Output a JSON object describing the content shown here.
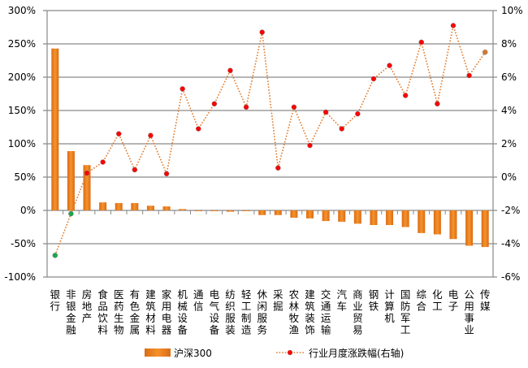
{
  "chart_data": {
    "type": "bar+line",
    "title": "",
    "categories": [
      "银行",
      "非银金融",
      "房地产",
      "食品饮料",
      "医药生物",
      "有色金属",
      "建筑材料",
      "家用电器",
      "机械设备",
      "通信",
      "电气设备",
      "纺织服装",
      "轻工制造",
      "休闲服务",
      "采掘",
      "农林牧渔",
      "建筑装饰",
      "交通运输",
      "汽车",
      "商业贸易",
      "钢铁",
      "计算机",
      "国防军工",
      "综合",
      "化工",
      "电子",
      "公用事业",
      "传媒"
    ],
    "series": [
      {
        "name": "沪深300",
        "type": "bar",
        "axis": "left",
        "color": "#f28a1e",
        "values": [
          243,
          89,
          68,
          12,
          11,
          11,
          7,
          6,
          2,
          -1,
          -1,
          -2,
          0,
          -7,
          -7,
          -11,
          -12,
          -16,
          -17,
          -20,
          -22,
          -22,
          -25,
          -34,
          -36,
          -43,
          -53,
          -55
        ]
      },
      {
        "name": "行业月度涨跌幅(右轴)",
        "type": "line",
        "axis": "right",
        "color": "#e07a2a",
        "marker_color": "#ff0000",
        "negative_marker_color": "#1aa84a",
        "values": [
          -4.7,
          -2.2,
          0.24,
          0.9,
          2.6,
          0.44,
          2.5,
          0.2,
          5.3,
          2.9,
          4.4,
          6.4,
          4.2,
          8.7,
          0.55,
          4.2,
          1.9,
          3.9,
          2.9,
          3.8,
          5.9,
          6.7,
          4.9,
          8.1,
          4.4,
          9.1,
          6.1,
          7.5
        ]
      }
    ],
    "left_axis": {
      "range": [
        -100,
        300
      ],
      "ticks": [
        "-100%",
        "-50%",
        "0%",
        "50%",
        "100%",
        "150%",
        "200%",
        "250%",
        "300%"
      ],
      "tick_values": [
        -100,
        -50,
        0,
        50,
        100,
        150,
        200,
        250,
        300
      ]
    },
    "right_axis": {
      "range": [
        -6,
        10
      ],
      "ticks": [
        "-6%",
        "-4%",
        "-2%",
        "0%",
        "2%",
        "4%",
        "6%",
        "8%",
        "10%"
      ],
      "tick_values": [
        -6,
        -4,
        -2,
        0,
        2,
        4,
        6,
        8,
        10
      ]
    },
    "grid": true,
    "legend": {
      "placement": "bottom",
      "items": [
        "沪深300",
        "行业月度涨跌幅(右轴)"
      ]
    }
  }
}
